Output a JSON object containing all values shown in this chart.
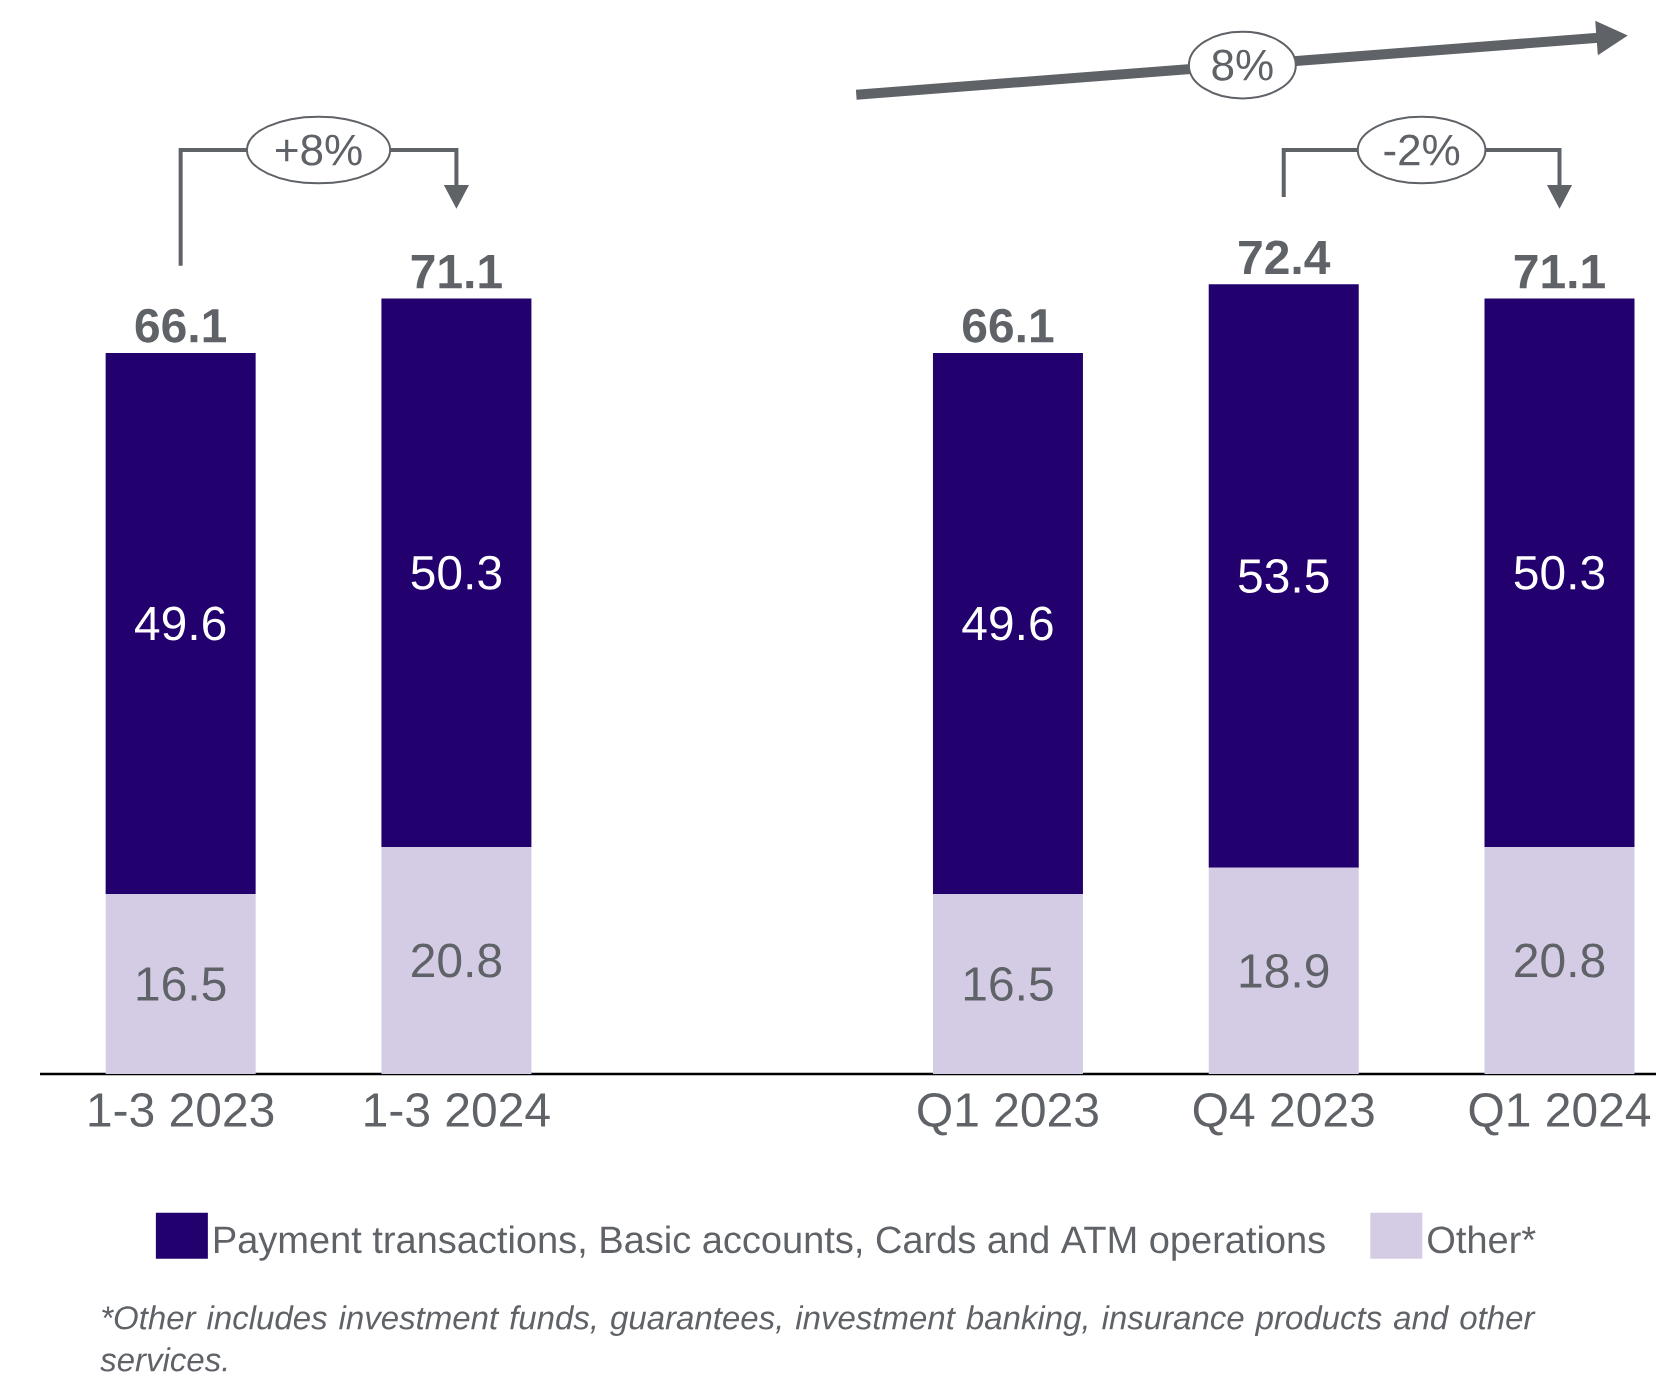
{
  "chart_data": {
    "type": "bar",
    "stacked": true,
    "categories": [
      "1-3 2023",
      "1-3 2024",
      null,
      "Q1 2023",
      "Q4 2023",
      "Q1 2024"
    ],
    "series": [
      {
        "name": "Other*",
        "color": "#d4cce4",
        "values": [
          16.5,
          20.8,
          null,
          16.5,
          18.9,
          20.8
        ]
      },
      {
        "name": "Payment transactions, Basic accounts, Cards and ATM operations",
        "color": "#22006e",
        "values": [
          49.6,
          50.3,
          null,
          49.6,
          53.5,
          50.3
        ]
      }
    ],
    "data_labels": true,
    "totals": [
      "66.1",
      "71.1",
      null,
      "66.1",
      "72.4",
      "71.1"
    ],
    "legend": "bottom",
    "annotations": [
      "+8%",
      "8%",
      "-2%",
      "*Other includes investment funds, guarantees, investment banking, insurance products and other services."
    ]
  }
}
